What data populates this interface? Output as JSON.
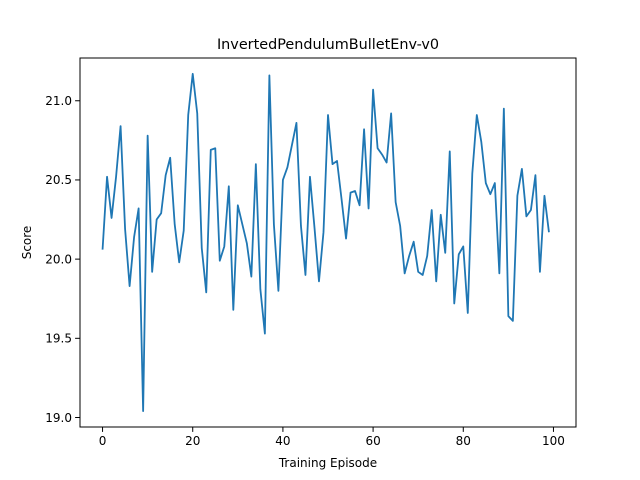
{
  "chart_data": {
    "type": "line",
    "title": "InvertedPendulumBulletEnv-v0",
    "xlabel": "Training Episode",
    "ylabel": "Score",
    "xlim": [
      -5,
      105
    ],
    "ylim": [
      18.94,
      21.27
    ],
    "xticks": [
      0,
      20,
      40,
      60,
      80,
      100
    ],
    "yticks": [
      19.0,
      19.5,
      20.0,
      20.5,
      21.0
    ],
    "xtick_labels": [
      "0",
      "20",
      "40",
      "60",
      "80",
      "100"
    ],
    "ytick_labels": [
      "19.0",
      "19.5",
      "20.0",
      "20.5",
      "21.0"
    ],
    "grid": false,
    "series": [
      {
        "color": "#1f77b4",
        "x": [
          0,
          1,
          2,
          3,
          4,
          5,
          6,
          7,
          8,
          9,
          10,
          11,
          12,
          13,
          14,
          15,
          16,
          17,
          18,
          19,
          20,
          21,
          22,
          23,
          24,
          25,
          26,
          27,
          28,
          29,
          30,
          31,
          32,
          33,
          34,
          35,
          36,
          37,
          38,
          39,
          40,
          41,
          42,
          43,
          44,
          45,
          46,
          47,
          48,
          49,
          50,
          51,
          52,
          53,
          54,
          55,
          56,
          57,
          58,
          59,
          60,
          61,
          62,
          63,
          64,
          65,
          66,
          67,
          68,
          69,
          70,
          71,
          72,
          73,
          74,
          75,
          76,
          77,
          78,
          79,
          80,
          81,
          82,
          83,
          84,
          85,
          86,
          87,
          88,
          89,
          90,
          91,
          92,
          93,
          94,
          95,
          96,
          97,
          98,
          99
        ],
        "values": [
          20.06,
          20.52,
          20.26,
          20.52,
          20.84,
          20.19,
          19.83,
          20.14,
          20.32,
          19.04,
          20.78,
          19.92,
          20.25,
          20.29,
          20.53,
          20.64,
          20.22,
          19.98,
          20.18,
          20.91,
          21.17,
          20.92,
          20.07,
          19.79,
          20.69,
          20.7,
          19.99,
          20.08,
          20.46,
          19.68,
          20.34,
          20.22,
          20.1,
          19.89,
          20.6,
          19.81,
          19.53,
          21.16,
          20.22,
          19.8,
          20.5,
          20.58,
          20.72,
          20.86,
          20.21,
          19.9,
          20.52,
          20.2,
          19.86,
          20.17,
          20.91,
          20.6,
          20.62,
          20.38,
          20.13,
          20.42,
          20.43,
          20.34,
          20.82,
          20.32,
          21.07,
          20.7,
          20.66,
          20.61,
          20.92,
          20.36,
          20.21,
          19.91,
          20.02,
          20.11,
          19.92,
          19.9,
          20.02,
          20.31,
          19.86,
          20.28,
          20.04,
          20.68,
          19.72,
          20.03,
          20.08,
          19.66,
          20.54,
          20.91,
          20.74,
          20.48,
          20.41,
          20.48,
          19.91,
          20.95,
          19.64,
          19.61,
          20.4,
          20.57,
          20.27,
          20.31,
          20.53,
          19.92,
          20.4,
          20.17
        ]
      }
    ]
  }
}
